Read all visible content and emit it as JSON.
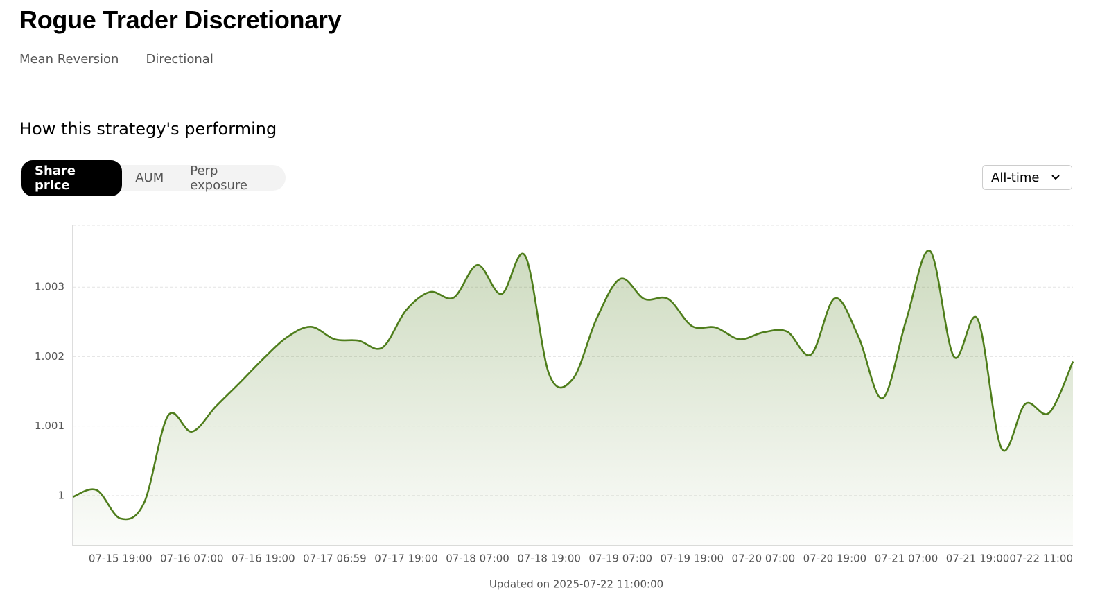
{
  "header": {
    "title": "Rogue Trader Discretionary",
    "tags": [
      "Mean Reversion",
      "Directional"
    ]
  },
  "section_title": "How this strategy's performing",
  "tabs": [
    "Share price",
    "AUM",
    "Perp exposure"
  ],
  "active_tab": 0,
  "range_selector": "All-time",
  "chart_data": {
    "type": "line",
    "categories": [
      "",
      null,
      "07-15 19:00",
      null,
      null,
      "07-16 07:00",
      null,
      null,
      "07-16 19:00",
      null,
      null,
      "07-17 06:59",
      null,
      null,
      "07-17 19:00",
      null,
      null,
      "07-18 07:00",
      null,
      null,
      "07-18 19:00",
      null,
      null,
      "07-19 07:00",
      null,
      null,
      "07-19 19:00",
      null,
      null,
      "07-20 07:00",
      null,
      null,
      "07-20 19:00",
      null,
      null,
      "07-21 07:00",
      null,
      null,
      "07-21 19:00",
      null,
      null,
      null,
      "07-22 11:00"
    ],
    "series": [
      {
        "name": "Share price",
        "color": "#4e7d1b",
        "values": [
          0.99998,
          1.00008,
          0.99967,
          0.9999,
          1.00115,
          1.00092,
          1.00128,
          1.00162,
          1.00197,
          1.00228,
          1.00243,
          1.00225,
          1.00223,
          1.00213,
          1.00267,
          1.00293,
          1.00285,
          1.00332,
          1.0029,
          1.00345,
          1.00175,
          1.00168,
          1.00255,
          1.00312,
          1.00283,
          1.00283,
          1.00244,
          1.00242,
          1.00225,
          1.00235,
          1.00236,
          1.00203,
          1.00284,
          1.00228,
          1.0014,
          1.00253,
          1.00352,
          1.002,
          1.00254,
          1.00068,
          1.00132,
          1.00119,
          1.00193
        ]
      }
    ],
    "ylim": [
      0.99928,
      1.00389
    ],
    "yticks": [
      1,
      1.001,
      1.002,
      1.003
    ],
    "grid": true
  },
  "updated": "Updated on 2025-07-22 11:00:00"
}
